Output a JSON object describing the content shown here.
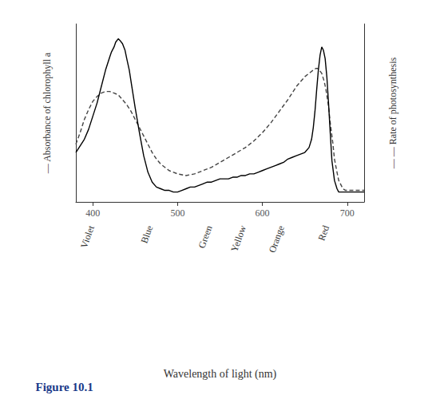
{
  "chart_data": {
    "type": "line",
    "xlabel": "Wavelength of light (nm)",
    "ylabel": "— Absorbance of chlorophyll a",
    "y2label": "— — Rate of photosynthesis",
    "xlim": [
      380,
      720
    ],
    "xticks": [
      400,
      500,
      600,
      700
    ],
    "ylim": [
      0,
      1.08
    ],
    "yticks": [],
    "tick_labels": "x",
    "grid": false,
    "series": [
      {
        "color": "#000000",
        "line_style": "solid",
        "x": [
          380,
          385,
          390,
          395,
          400,
          405,
          410,
          415,
          420,
          422,
          425,
          427,
          430,
          432,
          435,
          438,
          440,
          443,
          446,
          450,
          455,
          460,
          465,
          470,
          475,
          480,
          485,
          490,
          495,
          500,
          505,
          510,
          515,
          520,
          525,
          530,
          535,
          540,
          545,
          550,
          555,
          560,
          565,
          570,
          575,
          580,
          585,
          590,
          595,
          600,
          605,
          610,
          615,
          620,
          625,
          630,
          635,
          640,
          645,
          650,
          655,
          658,
          660,
          662,
          664,
          666,
          668,
          670,
          672,
          674,
          676,
          678,
          680,
          682,
          685,
          688,
          690,
          692,
          695,
          698,
          700,
          705,
          710,
          715,
          720
        ],
        "values": [
          0.3,
          0.34,
          0.38,
          0.44,
          0.52,
          0.6,
          0.7,
          0.8,
          0.88,
          0.91,
          0.94,
          0.97,
          0.99,
          0.98,
          0.96,
          0.92,
          0.87,
          0.8,
          0.7,
          0.57,
          0.42,
          0.28,
          0.18,
          0.12,
          0.09,
          0.08,
          0.07,
          0.07,
          0.06,
          0.06,
          0.07,
          0.08,
          0.09,
          0.09,
          0.1,
          0.11,
          0.12,
          0.12,
          0.13,
          0.14,
          0.14,
          0.14,
          0.15,
          0.15,
          0.16,
          0.16,
          0.17,
          0.17,
          0.18,
          0.19,
          0.2,
          0.21,
          0.22,
          0.23,
          0.24,
          0.26,
          0.27,
          0.28,
          0.29,
          0.3,
          0.33,
          0.38,
          0.45,
          0.55,
          0.68,
          0.8,
          0.89,
          0.94,
          0.92,
          0.87,
          0.76,
          0.6,
          0.42,
          0.25,
          0.13,
          0.08,
          0.06,
          0.06,
          0.06,
          0.06,
          0.06,
          0.06,
          0.06,
          0.06,
          0.06
        ]
      },
      {
        "color": "#444444",
        "line_style": "dashed",
        "x": [
          380,
          385,
          390,
          395,
          400,
          405,
          410,
          415,
          420,
          425,
          430,
          435,
          440,
          445,
          450,
          455,
          460,
          465,
          470,
          475,
          480,
          490,
          500,
          510,
          520,
          530,
          540,
          550,
          560,
          570,
          580,
          590,
          600,
          610,
          620,
          630,
          635,
          640,
          645,
          650,
          655,
          660,
          663,
          665,
          667,
          670,
          673,
          675,
          678,
          680,
          683,
          685,
          688,
          690,
          693,
          695,
          698,
          700,
          705,
          710,
          720
        ],
        "values": [
          0.35,
          0.42,
          0.5,
          0.56,
          0.61,
          0.64,
          0.66,
          0.67,
          0.67,
          0.66,
          0.65,
          0.62,
          0.59,
          0.55,
          0.5,
          0.45,
          0.4,
          0.35,
          0.3,
          0.26,
          0.23,
          0.19,
          0.17,
          0.16,
          0.17,
          0.19,
          0.21,
          0.24,
          0.27,
          0.3,
          0.33,
          0.37,
          0.42,
          0.48,
          0.55,
          0.62,
          0.66,
          0.7,
          0.73,
          0.76,
          0.78,
          0.8,
          0.81,
          0.81,
          0.8,
          0.78,
          0.73,
          0.68,
          0.58,
          0.48,
          0.36,
          0.26,
          0.18,
          0.13,
          0.1,
          0.08,
          0.07,
          0.07,
          0.07,
          0.07,
          0.07
        ]
      }
    ],
    "annotations": [
      {
        "text": "Violet",
        "x": 393
      },
      {
        "text": "Blue",
        "x": 462
      },
      {
        "text": "Green",
        "x": 532
      },
      {
        "text": "Yellow",
        "x": 572
      },
      {
        "text": "Orange",
        "x": 617
      },
      {
        "text": "Red",
        "x": 670
      },
      {
        "text": "Figure 10.1",
        "color": "#1a3a8a"
      }
    ]
  }
}
